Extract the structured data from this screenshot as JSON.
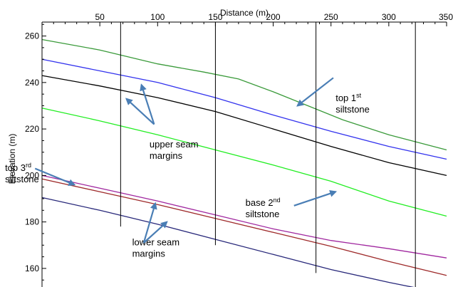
{
  "chart_data": {
    "type": "line",
    "xlabel": "Distance (m)",
    "ylabel": "Elevation (m)",
    "xlim": [
      0,
      350
    ],
    "ylim": [
      152,
      266
    ],
    "x_ticks": [
      50,
      100,
      150,
      200,
      250,
      300,
      350
    ],
    "y_ticks": [
      160,
      180,
      200,
      220,
      240,
      260
    ],
    "grid": false,
    "series": [
      {
        "color": "#3a9a3a",
        "x": [
          0,
          50,
          100,
          140,
          170,
          200,
          230,
          260,
          300,
          350
        ],
        "y": [
          258.5,
          254,
          248,
          244.5,
          241.5,
          236,
          230,
          224,
          217.5,
          211
        ]
      },
      {
        "color": "#3333ee",
        "x": [
          0,
          50,
          100,
          150,
          200,
          250,
          300,
          350
        ],
        "y": [
          250,
          245,
          240,
          233.5,
          226,
          219,
          212.5,
          207
        ]
      },
      {
        "color": "#000000",
        "x": [
          0,
          50,
          100,
          150,
          200,
          250,
          300,
          350
        ],
        "y": [
          243,
          238.5,
          233.5,
          227.5,
          220,
          212.5,
          205.5,
          200
        ]
      },
      {
        "color": "#22ee22",
        "x": [
          0,
          50,
          100,
          150,
          200,
          250,
          300,
          350
        ],
        "y": [
          229,
          223.5,
          217.5,
          211,
          204.5,
          197.5,
          189,
          182.5
        ]
      },
      {
        "color": "#a0279f",
        "x": [
          0,
          50,
          100,
          150,
          200,
          250,
          300,
          350
        ],
        "y": [
          200,
          194.5,
          189,
          183,
          177,
          172,
          168.5,
          164.5
        ]
      },
      {
        "color": "#9e2a2a",
        "x": [
          0,
          50,
          100,
          150,
          200,
          250,
          300,
          350
        ],
        "y": [
          198.5,
          193,
          187.5,
          181.5,
          175.5,
          169.5,
          163,
          157
        ]
      },
      {
        "color": "#28287a",
        "x": [
          0,
          50,
          100,
          150,
          200,
          250,
          300,
          350
        ],
        "y": [
          190.5,
          185,
          179,
          172.5,
          166,
          159.5,
          154,
          149
        ]
      }
    ],
    "vertical_lines": [
      {
        "x": 68,
        "y_bottom": 178
      },
      {
        "x": 150,
        "y_bottom": 170
      },
      {
        "x": 237,
        "y_bottom": 158
      },
      {
        "x": 323,
        "y_bottom": 151
      }
    ],
    "annotations": [
      {
        "lines": [
          {
            "main": "top 1",
            "sup": "st"
          },
          {
            "main": "siltstone"
          }
        ],
        "text_at": [
          254,
          232
        ],
        "arrows": [
          {
            "from": [
              252,
              242
            ],
            "to": [
              221,
              230
            ]
          }
        ]
      },
      {
        "lines": [
          {
            "main": "upper seam"
          },
          {
            "main": "margins"
          }
        ],
        "text_at": [
          93,
          212
        ],
        "arrows": [
          {
            "from": [
              97,
              222
            ],
            "to": [
              73,
              233
            ]
          },
          {
            "from": [
              97,
              222
            ],
            "to": [
              86,
              239
            ]
          }
        ]
      },
      {
        "lines": [
          {
            "main": "top 3",
            "sup": "rd"
          },
          {
            "main": "siltstone"
          }
        ],
        "text_at": [
          -32,
          202
        ],
        "arrows": [
          {
            "from": [
              -6,
              203
            ],
            "to": [
              28,
              196
            ]
          }
        ]
      },
      {
        "lines": [
          {
            "main": "base 2",
            "sup": "nd"
          },
          {
            "main": "siltstone"
          }
        ],
        "text_at": [
          176,
          187
        ],
        "arrows": [
          {
            "from": [
              218,
              187
            ],
            "to": [
              254,
              193
            ]
          }
        ]
      },
      {
        "lines": [
          {
            "main": "lower seam"
          },
          {
            "main": "margins"
          }
        ],
        "text_at": [
          78,
          170
        ],
        "arrows": [
          {
            "from": [
              88,
              171
            ],
            "to": [
              98,
              188
            ]
          },
          {
            "from": [
              88,
              171
            ],
            "to": [
              108,
              180
            ]
          }
        ]
      }
    ],
    "arrow_color": "#4a7eb5"
  }
}
